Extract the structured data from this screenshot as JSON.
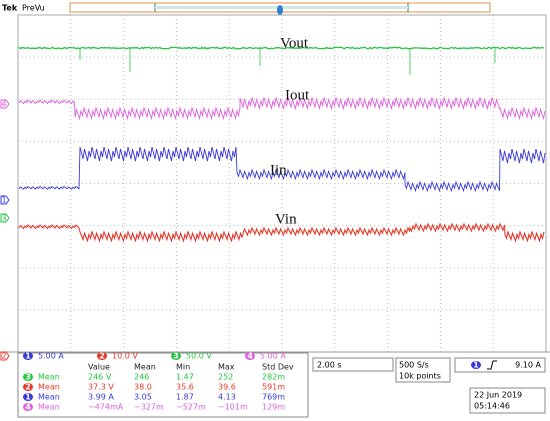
{
  "header": {
    "brand": "Tek",
    "mode": "PreVu"
  },
  "trace_labels": [
    "Vout",
    "Iout",
    "Iin",
    "Vin"
  ],
  "channels": [
    {
      "num": "1",
      "scale": "5.00 A",
      "color": "#3a3ad8"
    },
    {
      "num": "2",
      "scale": "10.0 V",
      "color": "#e5392b"
    },
    {
      "num": "3",
      "scale": "50.0 V",
      "color": "#26c63f"
    },
    {
      "num": "4",
      "scale": "5.00 A",
      "color": "#dd5fdd"
    }
  ],
  "measurements": {
    "columns": [
      "Value",
      "Mean",
      "Min",
      "Max",
      "Std Dev"
    ],
    "rows": [
      {
        "channel": "3",
        "stat": "Mean",
        "cells": [
          "246 V",
          "246",
          "1.47",
          "252",
          "282m"
        ]
      },
      {
        "channel": "2",
        "stat": "Mean",
        "cells": [
          "37.3 V",
          "38.0",
          "35.6",
          "39.6",
          "591m"
        ]
      },
      {
        "channel": "1",
        "stat": "Mean",
        "cells": [
          "3.99 A",
          "3.05",
          "1.87",
          "4.13",
          "769m"
        ]
      },
      {
        "channel": "4",
        "stat": "Mean",
        "cells": [
          "−474mA",
          "−327m",
          "−527m",
          "−101m",
          "129m"
        ]
      }
    ]
  },
  "timebase": "2.00 s",
  "sample_rate": "500 S/s",
  "record_length": "10k points",
  "trigger": {
    "channel": "1",
    "level": "9.10 A"
  },
  "date": "22 Jun 2019",
  "time": "05:14:46"
}
